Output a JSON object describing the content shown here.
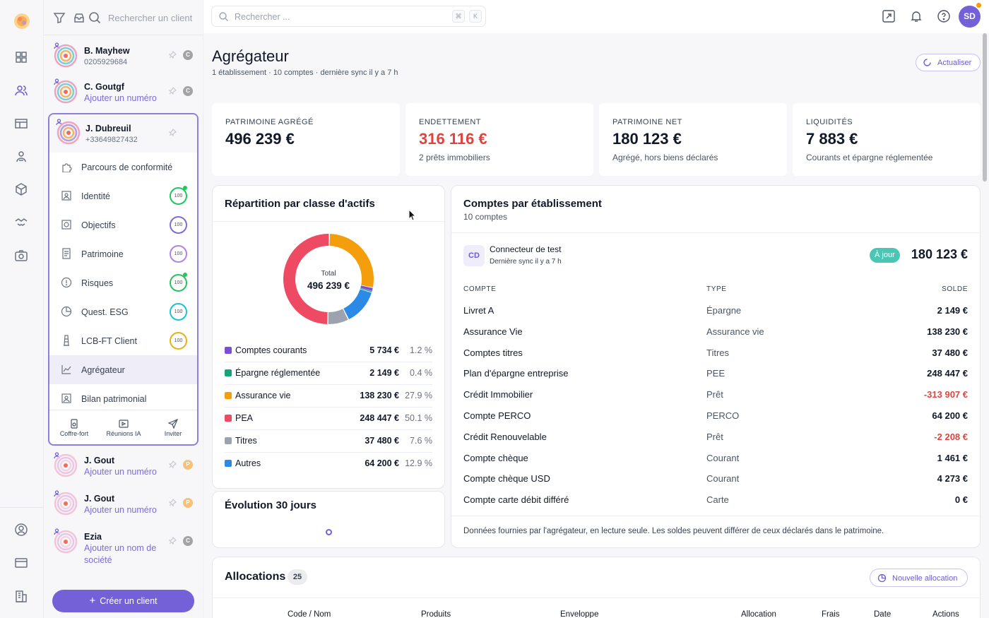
{
  "clients_panel": {
    "search_placeholder": "Rechercher un client",
    "create_label": "Créer un client"
  },
  "clients_top": [
    {
      "name": "B. Mayhew",
      "sub": "0205929684",
      "badge": "C",
      "badge_color": "#a3a3a3",
      "link": false
    },
    {
      "name": "C. Goutgf",
      "sub": "Ajouter un numéro",
      "badge": "C",
      "badge_color": "#a3a3a3",
      "link": true
    }
  ],
  "selected_client": {
    "name": "J. Dubreuil",
    "phone": "+33649827432"
  },
  "client_menu": [
    {
      "label": "Parcours de conformité",
      "icon": "puzzle-icon",
      "score": ""
    },
    {
      "label": "Identité",
      "icon": "id-card-icon",
      "score": "100",
      "color": "#22c55e",
      "dot": true
    },
    {
      "label": "Objectifs",
      "icon": "target-icon",
      "score": "100",
      "color": "#7c6bdc",
      "dot": false
    },
    {
      "label": "Patrimoine",
      "icon": "document-icon",
      "score": "100",
      "color": "#b084e0",
      "dot": false
    },
    {
      "label": "Risques",
      "icon": "alert-circle-icon",
      "score": "100",
      "color": "#22c55e",
      "dot": true
    },
    {
      "label": "Quest. ESG",
      "icon": "pie-icon",
      "score": "100",
      "color": "#22c0d0",
      "dot": false
    },
    {
      "label": "LCB-FT Client",
      "icon": "tower-icon",
      "score": "100",
      "color": "#eab308",
      "dot": false
    },
    {
      "label": "Agrégateur",
      "icon": "chart-line-icon",
      "score": "",
      "active": true
    },
    {
      "label": "Bilan patrimonial",
      "icon": "id-card-icon",
      "score": ""
    }
  ],
  "panel_footer": {
    "vault": "Coffre-fort",
    "meetings": "Réunions IA",
    "invite": "Inviter"
  },
  "clients_bottom": [
    {
      "name": "J. Gout",
      "sub": "Ajouter un numéro",
      "badge": "P",
      "badge_color": "#f5c27a"
    },
    {
      "name": "J. Gout",
      "sub": "Ajouter un numéro",
      "badge": "P",
      "badge_color": "#f5c27a"
    },
    {
      "name": "Ezia",
      "sub": "Ajouter un nom de",
      "sub2": "société",
      "badge": "C",
      "badge_color": "#a3a3a3"
    }
  ],
  "topbar": {
    "search_placeholder": "Rechercher ...",
    "kbd1": "⌘",
    "kbd2": "K",
    "user_initials": "SD"
  },
  "page": {
    "title": "Agrégateur",
    "subtitle": "1 établissement · 10 comptes · dernière sync il y a 7 h",
    "refresh_label": "Actualiser"
  },
  "kpis": [
    {
      "label": "PATRIMOINE AGRÉGÉ",
      "value": "496 239 €",
      "sub": "",
      "red": false
    },
    {
      "label": "ENDETTEMENT",
      "value": "316 116 €",
      "sub": "2 prêts immobiliers",
      "red": true
    },
    {
      "label": "PATRIMOINE NET",
      "value": "180 123 €",
      "sub": "Agrégé, hors biens déclarés",
      "red": false
    },
    {
      "label": "LIQUIDITÉS",
      "value": "7 883 €",
      "sub": "Courants et épargne réglementée",
      "red": false
    }
  ],
  "allocation_card": {
    "title": "Répartition par classe d'actifs",
    "total_label": "Total",
    "total_value": "496 239 €"
  },
  "chart_data": {
    "type": "pie",
    "title": "Répartition par classe d'actifs",
    "categories": [
      "Comptes courants",
      "Épargne réglementée",
      "Assurance vie",
      "PEA",
      "Titres",
      "Autres"
    ],
    "values": [
      5734,
      2149,
      138230,
      248447,
      37480,
      64200
    ],
    "value_labels": [
      "5 734 €",
      "2 149 €",
      "138 230 €",
      "248 447 €",
      "37 480 €",
      "64 200 €"
    ],
    "percent_labels": [
      "1.2 %",
      "0.4 %",
      "27.9 %",
      "50.1 %",
      "7.6 %",
      "12.9 %"
    ],
    "colors": [
      "#7c4ddc",
      "#16a37a",
      "#f59e0b",
      "#ef4a64",
      "#9ca3af",
      "#2b8ae6"
    ]
  },
  "evolution_card": {
    "title": "Évolution 30 jours"
  },
  "accounts_card": {
    "title": "Comptes par établissement",
    "subtitle": "10 comptes",
    "institution_initials": "CD",
    "institution_name": "Connecteur de test",
    "institution_sync": "Dernière sync il y a 7 h",
    "status": "À jour",
    "total": "180 123 €",
    "col_account": "COMPTE",
    "col_type": "TYPE",
    "col_balance": "SOLDE",
    "footer": "Données fournies par l'agrégateur, en lecture seule. Les soldes peuvent différer de ceux déclarés dans le patrimoine."
  },
  "accounts": [
    {
      "name": "Livret A",
      "type": "Épargne",
      "balance": "2 149 €",
      "neg": false
    },
    {
      "name": "Assurance Vie",
      "type": "Assurance vie",
      "balance": "138 230 €",
      "neg": false
    },
    {
      "name": "Comptes titres",
      "type": "Titres",
      "balance": "37 480 €",
      "neg": false
    },
    {
      "name": "Plan d'épargne entreprise",
      "type": "PEE",
      "balance": "248 447 €",
      "neg": false
    },
    {
      "name": "Crédit Immobilier",
      "type": "Prêt",
      "balance": "-313 907 €",
      "neg": true
    },
    {
      "name": "Compte PERCO",
      "type": "PERCO",
      "balance": "64 200 €",
      "neg": false
    },
    {
      "name": "Crédit Renouvelable",
      "type": "Prêt",
      "balance": "-2 208 €",
      "neg": true
    },
    {
      "name": "Compte chèque",
      "type": "Courant",
      "balance": "1 461 €",
      "neg": false
    },
    {
      "name": "Compte chèque USD",
      "type": "Courant",
      "balance": "4 273 €",
      "neg": false
    },
    {
      "name": "Compte carte débit différé",
      "type": "Carte",
      "balance": "0 €",
      "neg": false
    }
  ],
  "allocations_section": {
    "title": "Allocations",
    "count": "25",
    "new_label": "Nouvelle allocation",
    "headers": [
      "Code / Nom",
      "Produits",
      "Enveloppe",
      "Allocation",
      "Frais",
      "Date",
      "Actions"
    ]
  }
}
